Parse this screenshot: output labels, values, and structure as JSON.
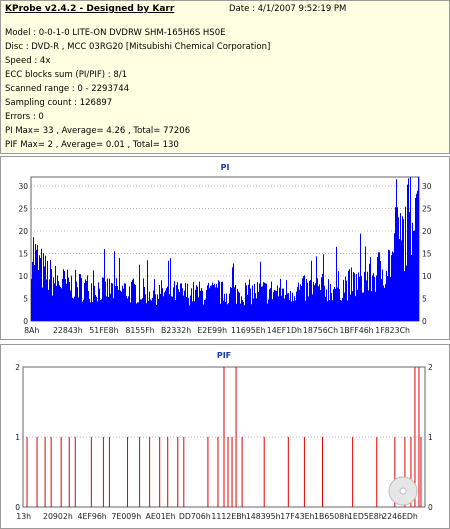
{
  "info": {
    "title": "KProbe v2.4.2 - Designed by Karr",
    "date": "Date : 4/1/2007 9:52:19 PM",
    "lines": [
      "Model : 0-0-1-0 LITE-ON DVDRW SHM-165H6S HS0E",
      "Disc : DVD-R , MCC 03RG20  [Mitsubishi Chemical Corporation]",
      "Speed : 4x",
      "ECC blocks sum (PI/PIF) : 8/1",
      "Scanned range : 0 - 2293744",
      "Sampling count : 126897",
      "Errors : 0",
      "PI Max= 33 , Average= 4.26 , Total= 77206",
      "PIF Max= 2 , Average= 0.01 , Total= 130"
    ]
  },
  "chart_data": [
    {
      "type": "bar",
      "title": "PI",
      "ylim": [
        0,
        32
      ],
      "yticks": [
        "0",
        "5",
        "10",
        "15",
        "20",
        "25",
        "30"
      ],
      "xticks": [
        "8Ah",
        "22843h",
        "51FE8h",
        "8155Fh",
        "B2332h",
        "E2E99h",
        "11695Eh",
        "14EF1Dh",
        "18756Ch",
        "1BFF46h",
        "1F823Ch"
      ],
      "color": "#0000ff",
      "profile": [
        [
          0,
          17
        ],
        [
          0.01,
          14
        ],
        [
          0.03,
          11
        ],
        [
          0.06,
          9
        ],
        [
          0.1,
          8
        ],
        [
          0.15,
          7.5
        ],
        [
          0.2,
          7
        ],
        [
          0.3,
          6.5
        ],
        [
          0.4,
          6.2
        ],
        [
          0.5,
          6.2
        ],
        [
          0.6,
          6.5
        ],
        [
          0.7,
          7
        ],
        [
          0.78,
          7.5
        ],
        [
          0.84,
          8.5
        ],
        [
          0.88,
          10
        ],
        [
          0.91,
          12
        ],
        [
          0.94,
          15
        ],
        [
          0.96,
          19
        ],
        [
          0.98,
          24
        ],
        [
          1.0,
          28
        ]
      ],
      "max": 33
    },
    {
      "type": "bar",
      "title": "PIF",
      "ylim": [
        0,
        2
      ],
      "yticks": [
        "0",
        "1",
        "2"
      ],
      "xticks": [
        "13h",
        "20902h",
        "4EF96h",
        "7E009h",
        "AE01Eh",
        "DD706h",
        "1112EBh",
        "148395h",
        "17F43Eh",
        "1B6508h",
        "1ED5E8h",
        "2246EDh"
      ],
      "color": "#e00000",
      "spikes": [
        [
          0.01,
          1
        ],
        [
          0.035,
          1
        ],
        [
          0.055,
          1
        ],
        [
          0.07,
          1
        ],
        [
          0.095,
          1
        ],
        [
          0.115,
          1
        ],
        [
          0.13,
          1
        ],
        [
          0.17,
          1
        ],
        [
          0.2,
          1
        ],
        [
          0.215,
          1
        ],
        [
          0.26,
          1
        ],
        [
          0.29,
          1
        ],
        [
          0.315,
          1
        ],
        [
          0.34,
          1
        ],
        [
          0.36,
          1
        ],
        [
          0.385,
          1
        ],
        [
          0.4,
          1
        ],
        [
          0.46,
          1
        ],
        [
          0.485,
          1
        ],
        [
          0.5,
          2
        ],
        [
          0.51,
          1
        ],
        [
          0.52,
          1
        ],
        [
          0.53,
          2
        ],
        [
          0.545,
          1
        ],
        [
          0.6,
          1
        ],
        [
          0.66,
          1
        ],
        [
          0.7,
          1
        ],
        [
          0.745,
          1
        ],
        [
          0.82,
          1
        ],
        [
          0.88,
          1
        ],
        [
          0.925,
          1
        ],
        [
          0.95,
          1
        ],
        [
          0.965,
          1
        ],
        [
          0.975,
          2
        ],
        [
          0.985,
          2
        ],
        [
          0.99,
          1
        ]
      ]
    }
  ]
}
